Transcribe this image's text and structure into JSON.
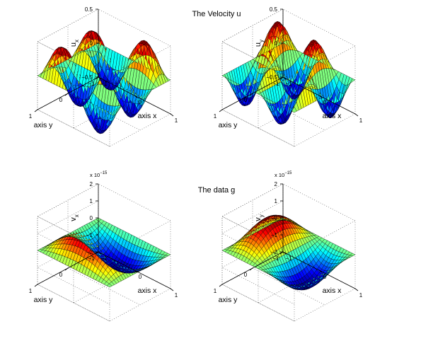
{
  "figure": {
    "section_titles": [
      "The Velocity u",
      "The data g"
    ]
  },
  "chart_data": [
    {
      "type": "surface",
      "name": "ux",
      "section": "The Velocity u",
      "zlabel_base": "u",
      "zlabel_sub": "x",
      "xlabel": "axis x",
      "ylabel": "axis y",
      "xlim": [
        -1,
        1
      ],
      "ylim": [
        -1,
        1
      ],
      "zlim": [
        -0.5,
        0.5
      ],
      "xticks": [
        "-1",
        "0",
        "1"
      ],
      "yticks": [
        "-1",
        "0",
        "1"
      ],
      "zticks": [
        "-0.5",
        "0",
        "0.5"
      ],
      "zscale_label": "",
      "z_function": "0.5*sin(pi*x)*sin(2*pi*y) (approx.)",
      "colormap": "jet"
    },
    {
      "type": "surface",
      "name": "uy",
      "section": "The Velocity u",
      "zlabel_base": "u",
      "zlabel_sub": "y",
      "xlabel": "axis x",
      "ylabel": "axis y",
      "xlim": [
        -1,
        1
      ],
      "ylim": [
        -1,
        1
      ],
      "zlim": [
        -0.5,
        0.5
      ],
      "xticks": [
        "-1",
        "0",
        "1"
      ],
      "yticks": [
        "-1",
        "0",
        "1"
      ],
      "zticks": [
        "-0.5",
        "0",
        "0.5"
      ],
      "zscale_label": "",
      "z_function": "-0.5*sin(2*pi*x)*sin(pi*y) (approx.)",
      "colormap": "jet"
    },
    {
      "type": "surface",
      "name": "vx",
      "section": "The data g",
      "zlabel_base": "v",
      "zlabel_sub": "x",
      "xlabel": "axis x",
      "ylabel": "axis y",
      "xlim": [
        -1,
        1
      ],
      "ylim": [
        -1,
        1
      ],
      "zlim": [
        -2e-15,
        2e-15
      ],
      "xticks": [
        "-1",
        "0",
        "1"
      ],
      "yticks": [
        "-1",
        "0",
        "1"
      ],
      "zticks": [
        "-2",
        "-1",
        "0",
        "1",
        "2"
      ],
      "zscale_label": "x 10",
      "zscale_exp": "-15",
      "z_function": "1.5e-15*sin(pi*y)*cos(pi*x/2) (approx.)",
      "colormap": "jet"
    },
    {
      "type": "surface",
      "name": "vy",
      "section": "The data g",
      "zlabel_base": "v",
      "zlabel_sub": "y",
      "xlabel": "axis x",
      "ylabel": "axis y",
      "xlim": [
        -1,
        1
      ],
      "ylim": [
        -1,
        1
      ],
      "zlim": [
        -2e-15,
        2e-15
      ],
      "xticks": [
        "-1",
        "0",
        "1"
      ],
      "yticks": [
        "-1",
        "0",
        "1"
      ],
      "zticks": [
        "-2",
        "-1",
        "0",
        "1",
        "2"
      ],
      "zscale_label": "x 10",
      "zscale_exp": "-15",
      "z_function": "-1.5e-15*sin(pi*x)*cos(pi*y/2) (approx.)",
      "colormap": "jet"
    }
  ]
}
